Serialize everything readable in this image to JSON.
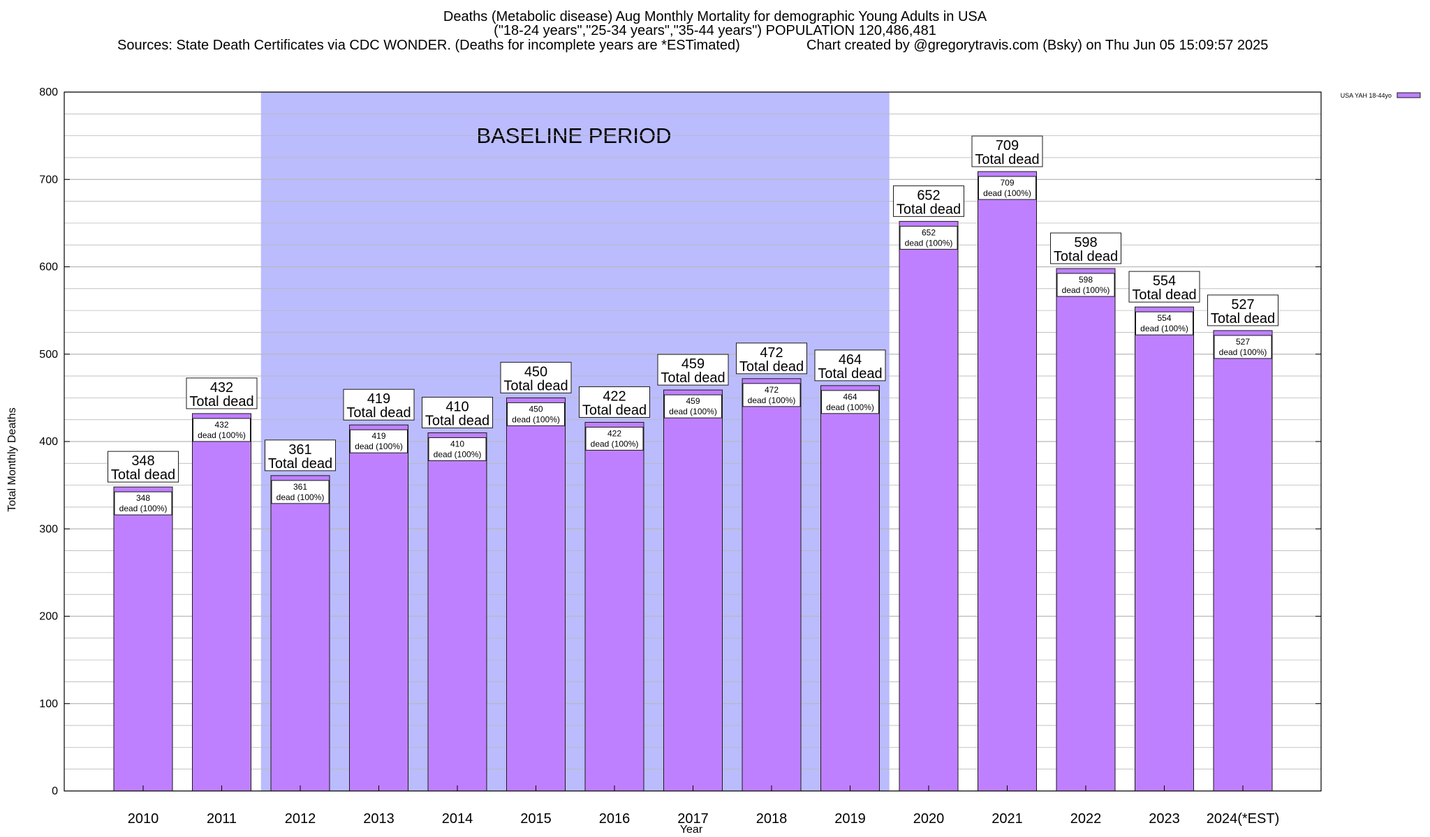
{
  "chart_data": {
    "type": "bar",
    "title_lines": [
      "Deaths (Metabolic disease) Aug Monthly Mortality for demographic Young Adults in USA",
      "(\"18-24 years\",\"25-34 years\",\"35-44 years\") POPULATION 120,486,481"
    ],
    "sources": "Sources: State Death Certificates via CDC WONDER. (Deaths for incomplete years are *ESTimated)",
    "credit": "Chart created by @gregorytravis.com (Bsky) on Thu Jun 05 15:09:57 2025",
    "xlabel": "Year",
    "ylabel": "Total Monthly Deaths",
    "ylim": [
      0,
      800
    ],
    "yticks": [
      "0",
      "100",
      "200",
      "300",
      "400",
      "500",
      "600",
      "700",
      "800"
    ],
    "categories": [
      "2010",
      "2011",
      "2012",
      "2013",
      "2014",
      "2015",
      "2016",
      "2017",
      "2018",
      "2019",
      "2020",
      "2021",
      "2022",
      "2023",
      "2024(*EST)"
    ],
    "series": [
      {
        "name": "USA YAH 18-44yo",
        "values": [
          348,
          432,
          361,
          419,
          410,
          450,
          422,
          459,
          472,
          464,
          652,
          709,
          598,
          554,
          527
        ]
      }
    ],
    "top_label_text": "Total dead",
    "inner_label_text": "dead (100%)",
    "baseline": {
      "label": "BASELINE PERIOD",
      "start_category": "2012",
      "end_category": "2019"
    },
    "legend_position": "top-right",
    "grid": true,
    "colors": {
      "bar": "#bf80ff",
      "bar_edge": "#1a1a1a",
      "baseline_fill": "#bbbcfd",
      "grid": "#b8b8b8"
    }
  }
}
